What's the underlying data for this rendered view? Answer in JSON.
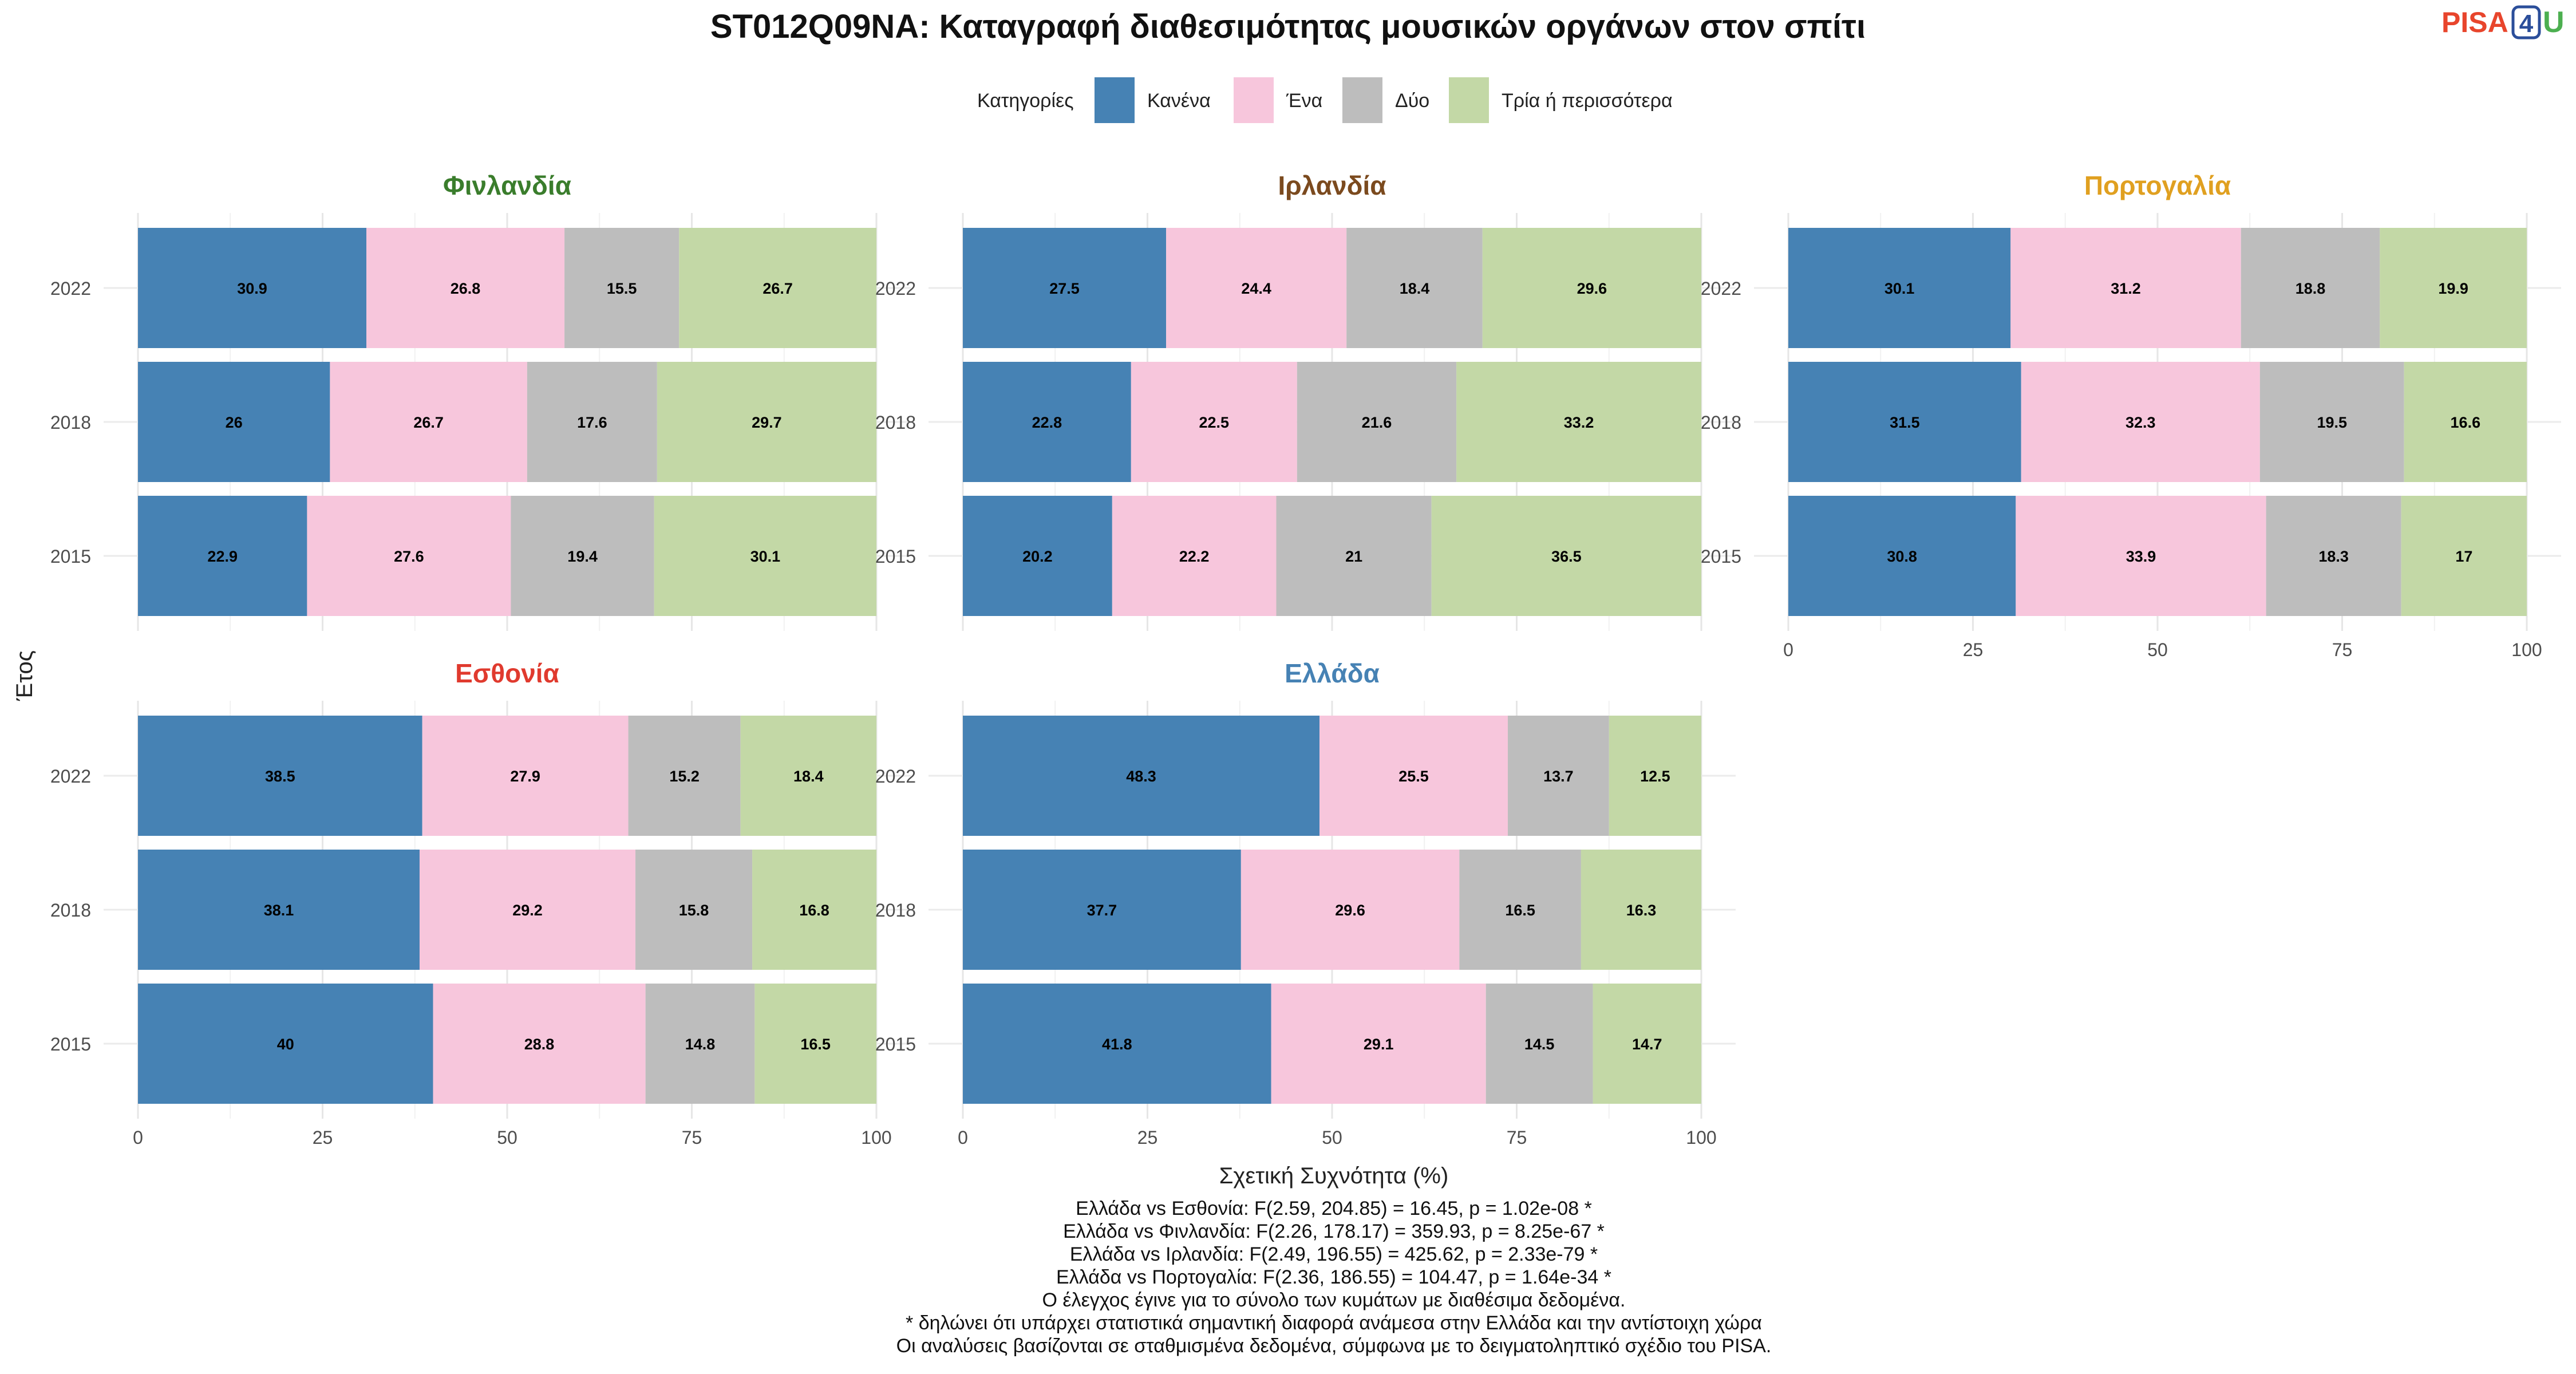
{
  "title": "ST012Q09NA: Καταγραφή διαθεσιμότητας μουσικών οργάνων στον σπίτι",
  "logo": {
    "text": "PISA",
    "digit": "4",
    "letter": "U"
  },
  "legend": {
    "title": "Κατηγορίες",
    "items": [
      {
        "label": "Κανένα",
        "color": "#4682B4"
      },
      {
        "label": "Ένα",
        "color": "#F7C6DC"
      },
      {
        "label": "Δύο",
        "color": "#BDBDBD"
      },
      {
        "label": "Τρία ή περισσότερα",
        "color": "#C3D8A6"
      }
    ]
  },
  "chart_data": {
    "type": "bar",
    "orientation": "horizontal-stacked",
    "ylabel": "Έτος",
    "xlabel": "Σχετική Συχνότητα (%)",
    "xlim": [
      0,
      100
    ],
    "xticks": [
      0,
      25,
      50,
      75,
      100
    ],
    "years": [
      "2022",
      "2018",
      "2015"
    ],
    "series_names": [
      "Κανένα",
      "Ένα",
      "Δύο",
      "Τρία ή περισσότερα"
    ],
    "legend_position": "top",
    "grid": true,
    "panels": [
      {
        "country": "Φινλανδία",
        "title_color": "#3A7D2C",
        "rows": [
          {
            "year": "2022",
            "values": [
              30.9,
              26.8,
              15.5,
              26.7
            ],
            "labels": [
              "30.9",
              "26.8",
              "15.5",
              "26.7"
            ]
          },
          {
            "year": "2018",
            "values": [
              26,
              26.7,
              17.6,
              29.7
            ],
            "labels": [
              "26",
              "26.7",
              "17.6",
              "29.7"
            ]
          },
          {
            "year": "2015",
            "values": [
              22.9,
              27.6,
              19.4,
              30.1
            ],
            "labels": [
              "22.9",
              "27.6",
              "19.4",
              "30.1"
            ]
          }
        ]
      },
      {
        "country": "Ιρλανδία",
        "title_color": "#7B4A1E",
        "rows": [
          {
            "year": "2022",
            "values": [
              27.5,
              24.4,
              18.4,
              29.6
            ],
            "labels": [
              "27.5",
              "24.4",
              "18.4",
              "29.6"
            ]
          },
          {
            "year": "2018",
            "values": [
              22.8,
              22.5,
              21.6,
              33.2
            ],
            "labels": [
              "22.8",
              "22.5",
              "21.6",
              "33.2"
            ]
          },
          {
            "year": "2015",
            "values": [
              20.2,
              22.2,
              21,
              36.5
            ],
            "labels": [
              "20.2",
              "22.2",
              "21",
              "36.5"
            ]
          }
        ]
      },
      {
        "country": "Πορτογαλία",
        "title_color": "#E0A020",
        "rows": [
          {
            "year": "2022",
            "values": [
              30.1,
              31.2,
              18.8,
              19.9
            ],
            "labels": [
              "30.1",
              "31.2",
              "18.8",
              "19.9"
            ]
          },
          {
            "year": "2018",
            "values": [
              31.5,
              32.3,
              19.5,
              16.6
            ],
            "labels": [
              "31.5",
              "32.3",
              "19.5",
              "16.6"
            ]
          },
          {
            "year": "2015",
            "values": [
              30.8,
              33.9,
              18.3,
              17
            ],
            "labels": [
              "30.8",
              "33.9",
              "18.3",
              "17"
            ]
          }
        ]
      },
      {
        "country": "Εσθονία",
        "title_color": "#E03A2E",
        "rows": [
          {
            "year": "2022",
            "values": [
              38.5,
              27.9,
              15.2,
              18.4
            ],
            "labels": [
              "38.5",
              "27.9",
              "15.2",
              "18.4"
            ]
          },
          {
            "year": "2018",
            "values": [
              38.1,
              29.2,
              15.8,
              16.8
            ],
            "labels": [
              "38.1",
              "29.2",
              "15.8",
              "16.8"
            ]
          },
          {
            "year": "2015",
            "values": [
              40,
              28.8,
              14.8,
              16.5
            ],
            "labels": [
              "40",
              "28.8",
              "14.8",
              "16.5"
            ]
          }
        ]
      },
      {
        "country": "Ελλάδα",
        "title_color": "#4682B4",
        "rows": [
          {
            "year": "2022",
            "values": [
              48.3,
              25.5,
              13.7,
              12.5
            ],
            "labels": [
              "48.3",
              "25.5",
              "13.7",
              "12.5"
            ]
          },
          {
            "year": "2018",
            "values": [
              37.7,
              29.6,
              16.5,
              16.3
            ],
            "labels": [
              "37.7",
              "29.6",
              "16.5",
              "16.3"
            ]
          },
          {
            "year": "2015",
            "values": [
              41.8,
              29.1,
              14.5,
              14.7
            ],
            "labels": [
              "41.8",
              "29.1",
              "14.5",
              "14.7"
            ]
          }
        ]
      }
    ]
  },
  "footnotes": [
    "Ελλάδα vs Εσθονία: F(2.59, 204.85) = 16.45, p = 1.02e-08 *",
    "Ελλάδα vs Φινλανδία: F(2.26, 178.17) = 359.93, p = 8.25e-67 *",
    "Ελλάδα vs Ιρλανδία: F(2.49, 196.55) = 425.62, p = 2.33e-79 *",
    "Ελλάδα vs Πορτογαλία: F(2.36, 186.55) = 104.47, p = 1.64e-34 *",
    "Ο έλεγχος έγινε για το σύνολο των κυμάτων με διαθέσιμα δεδομένα.",
    "* δηλώνει ότι υπάρχει στατιστικά σημαντική διαφορά ανάμεσα στην Ελλάδα και την αντίστοιχη χώρα",
    "Οι αναλύσεις βασίζονται σε σταθμισμένα δεδομένα, σύμφωνα με το δειγματοληπτικό σχέδιο του PISA."
  ]
}
